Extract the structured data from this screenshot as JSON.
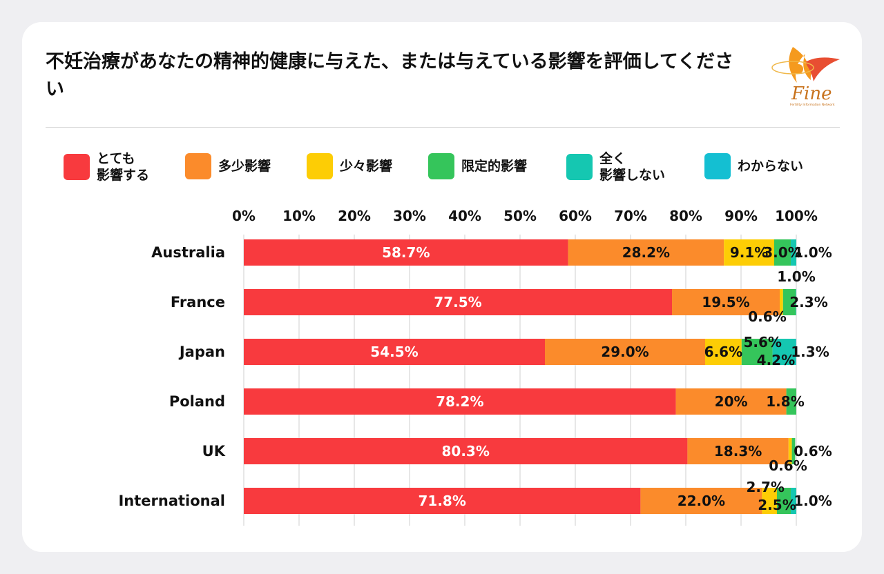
{
  "title": "不妊治療があなたの精神的健康に与えた、または与えている影響を評価してください",
  "logo": {
    "text": "Fine",
    "subtext": "Fertility Information Network"
  },
  "colors": {
    "very_affected": "#f83a3e",
    "much_affected": "#fb8b2b",
    "little_affected": "#fdcd05",
    "limited_affected": "#35c55b",
    "not_at_all": "#15c7b1",
    "unknown": "#14bfd2"
  },
  "legend": [
    {
      "label": "とても\n影響する",
      "color": "#f83a3e"
    },
    {
      "label": "多少影響",
      "color": "#fb8b2b"
    },
    {
      "label": "少々影響",
      "color": "#fdcd05"
    },
    {
      "label": "限定的影響",
      "color": "#35c55b"
    },
    {
      "label": "全く\n影響しない",
      "color": "#15c7b1"
    },
    {
      "label": "わからない",
      "color": "#14bfd2"
    }
  ],
  "chart_data": {
    "type": "bar",
    "orientation": "horizontal",
    "stacked": true,
    "xlim": [
      0,
      100
    ],
    "x_ticks": [
      "0%",
      "10%",
      "20%",
      "30%",
      "40%",
      "50%",
      "60%",
      "70%",
      "80%",
      "90%",
      "100%"
    ],
    "categories": [
      "Australia",
      "France",
      "Japan",
      "Poland",
      "UK",
      "International"
    ],
    "series": [
      {
        "name": "とても影響する",
        "values": [
          58.7,
          77.5,
          54.5,
          78.2,
          80.3,
          71.8
        ],
        "labels": [
          "58.7%",
          "77.5%",
          "54.5%",
          "78.2%",
          "80.3%",
          "71.8%"
        ]
      },
      {
        "name": "多少影響",
        "values": [
          28.2,
          19.5,
          29.0,
          20,
          18.3,
          22.0
        ],
        "labels": [
          "28.2%",
          "19.5%",
          "29.0%",
          "20%",
          "18.3%",
          "22.0%"
        ]
      },
      {
        "name": "少々影響",
        "values": [
          9.1,
          0.6,
          6.6,
          0,
          0.6,
          2.7
        ],
        "labels": [
          "9.1%",
          "0.6%",
          "6.6%",
          "",
          "0.6%",
          "2.7%"
        ]
      },
      {
        "name": "限定的影響",
        "values": [
          3.0,
          2.3,
          5.6,
          1.8,
          0.6,
          2.5
        ],
        "labels": [
          "3.0%",
          "2.3%",
          "5.6%",
          "1.8%",
          "0.6%",
          "2.5%"
        ]
      },
      {
        "name": "全く影響しない",
        "values": [
          1.0,
          1.0,
          4.2,
          0,
          0,
          1.0
        ],
        "labels": [
          "",
          "1.0%",
          "4.2%",
          "",
          "",
          ""
        ]
      },
      {
        "name": "わからない",
        "values": [
          1.0,
          0,
          1.3,
          0,
          0,
          1.0
        ],
        "labels": [
          "1.0%",
          "",
          "1.3%",
          "",
          "",
          "1.0%"
        ]
      }
    ]
  }
}
